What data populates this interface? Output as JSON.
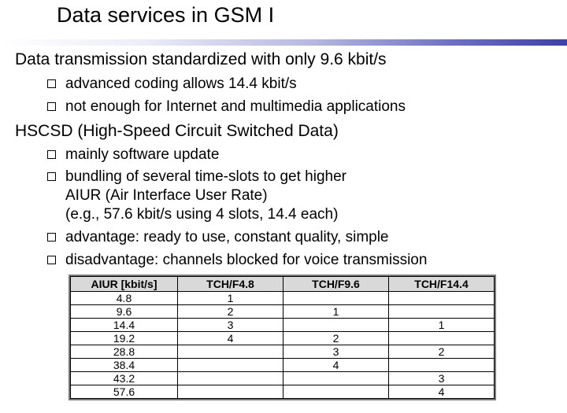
{
  "title": "Data services in GSM I",
  "colors": {
    "title_bar": "#3d40a6",
    "table_header_bg": "#d9d9d9"
  },
  "bullets": {
    "data_transmission": "Data transmission standardized with only 9.6 kbit/s",
    "advanced_coding": "advanced coding allows 14.4 kbit/s",
    "not_enough": "not enough for Internet and multimedia applications",
    "hscsd": "HSCSD (High-Speed Circuit Switched Data)",
    "software_update": "mainly software update",
    "bundling_line1": "bundling of several time-slots to get higher",
    "bundling_line2": "AIUR (Air Interface User Rate)",
    "bundling_line3": "(e.g., 57.6 kbit/s using 4 slots, 14.4 each)",
    "advantage": "advantage: ready to use, constant quality, simple",
    "disadvantage": "disadvantage: channels blocked for voice transmission"
  },
  "table": {
    "headers": [
      "AIUR [kbit/s]",
      "TCH/F4.8",
      "TCH/F9.6",
      "TCH/F14.4"
    ],
    "rows": [
      [
        "4.8",
        "1",
        "",
        ""
      ],
      [
        "9.6",
        "2",
        "1",
        ""
      ],
      [
        "14.4",
        "3",
        "",
        "1"
      ],
      [
        "19.2",
        "4",
        "2",
        ""
      ],
      [
        "28.8",
        "",
        "3",
        "2"
      ],
      [
        "38.4",
        "",
        "4",
        ""
      ],
      [
        "43.2",
        "",
        "",
        "3"
      ],
      [
        "57.6",
        "",
        "",
        "4"
      ]
    ]
  }
}
